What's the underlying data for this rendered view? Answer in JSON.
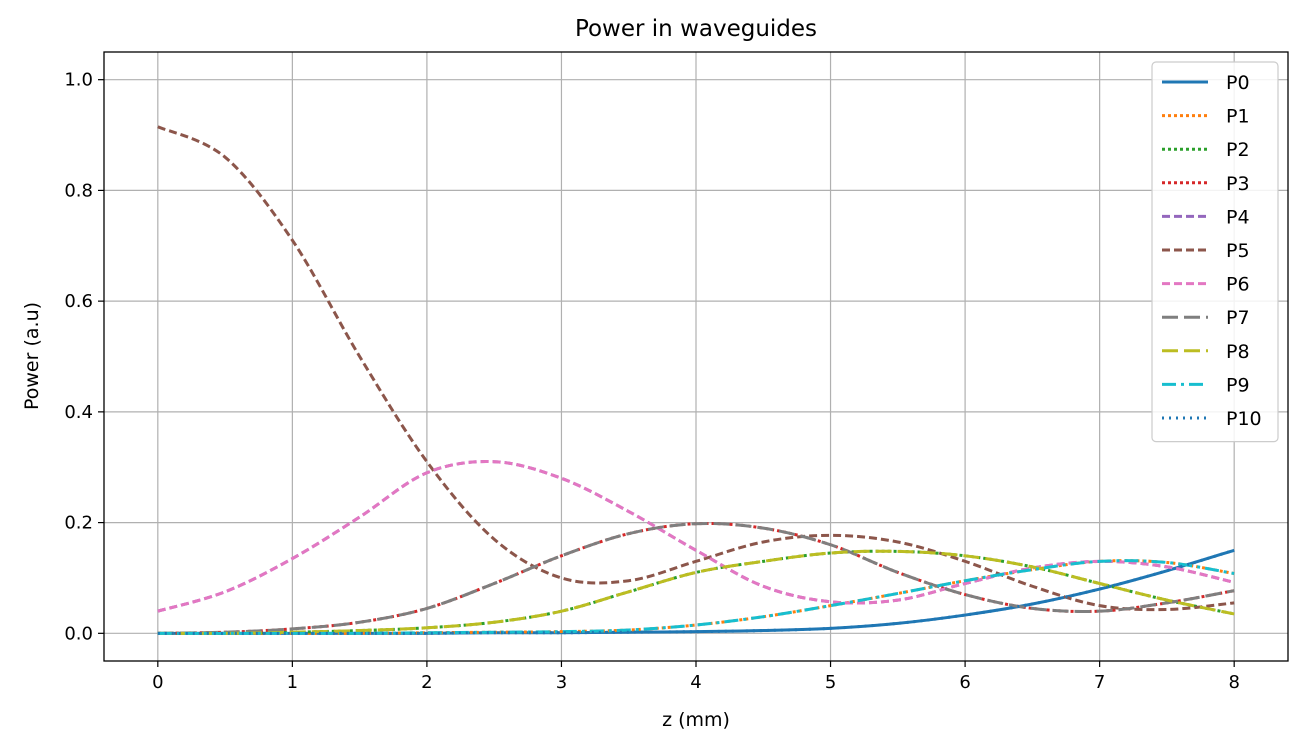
{
  "chart_data": {
    "type": "line",
    "title": "Power in waveguides",
    "xlabel": "z (mm)",
    "ylabel": "Power (a.u)",
    "xlim": [
      -0.4,
      8.4
    ],
    "ylim": [
      -0.05,
      1.05
    ],
    "xticks": [
      0,
      1,
      2,
      3,
      4,
      5,
      6,
      7,
      8
    ],
    "xtick_labels": [
      "0",
      "1",
      "2",
      "3",
      "4",
      "5",
      "6",
      "7",
      "8"
    ],
    "yticks": [
      0.0,
      0.2,
      0.4,
      0.6,
      0.8,
      1.0
    ],
    "ytick_labels": [
      "0.0",
      "0.2",
      "0.4",
      "0.6",
      "0.8",
      "1.0"
    ],
    "grid": true,
    "legend_position": "top-right",
    "x": [
      0,
      0.5,
      1,
      1.5,
      2,
      2.5,
      3,
      3.5,
      4,
      4.5,
      5,
      5.5,
      6,
      6.5,
      7,
      7.5,
      8
    ],
    "series": [
      {
        "name": "P0",
        "color": "#1f77b4",
        "dash": "solid",
        "values": [
          0,
          0,
          0,
          0,
          0,
          0.001,
          0.001,
          0.002,
          0.003,
          0.005,
          0.009,
          0.018,
          0.033,
          0.053,
          0.08,
          0.113,
          0.15
        ]
      },
      {
        "name": "P1",
        "color": "#ff7f0e",
        "dash": "dotted",
        "values": [
          0,
          0,
          0,
          0,
          0.001,
          0.002,
          0.003,
          0.006,
          0.015,
          0.03,
          0.05,
          0.072,
          0.095,
          0.115,
          0.13,
          0.128,
          0.108
        ]
      },
      {
        "name": "P2",
        "color": "#2ca02c",
        "dash": "dotted",
        "values": [
          0,
          0,
          0.002,
          0.005,
          0.01,
          0.02,
          0.04,
          0.075,
          0.11,
          0.13,
          0.145,
          0.148,
          0.14,
          0.12,
          0.09,
          0.06,
          0.035
        ]
      },
      {
        "name": "P3",
        "color": "#d62728",
        "dash": "dotted",
        "values": [
          0,
          0.002,
          0.008,
          0.02,
          0.045,
          0.09,
          0.14,
          0.18,
          0.198,
          0.19,
          0.16,
          0.11,
          0.07,
          0.045,
          0.04,
          0.055,
          0.077
        ]
      },
      {
        "name": "P4",
        "color": "#9467bd",
        "dash": "dashed",
        "values": [
          0.04,
          0.075,
          0.135,
          0.21,
          0.29,
          0.31,
          0.28,
          0.22,
          0.15,
          0.085,
          0.057,
          0.06,
          0.09,
          0.118,
          0.13,
          0.12,
          0.092
        ]
      },
      {
        "name": "P5",
        "color": "#8c564b",
        "dash": "dashed",
        "values": [
          0.915,
          0.86,
          0.71,
          0.5,
          0.31,
          0.17,
          0.1,
          0.095,
          0.13,
          0.165,
          0.177,
          0.165,
          0.13,
          0.085,
          0.05,
          0.043,
          0.055
        ]
      },
      {
        "name": "P6",
        "color": "#e377c2",
        "dash": "dashed",
        "values": [
          0.04,
          0.075,
          0.135,
          0.21,
          0.29,
          0.31,
          0.28,
          0.22,
          0.15,
          0.085,
          0.057,
          0.06,
          0.09,
          0.118,
          0.13,
          0.12,
          0.092
        ]
      },
      {
        "name": "P7",
        "color": "#7f7f7f",
        "dash": "longdash",
        "values": [
          0,
          0.002,
          0.008,
          0.02,
          0.045,
          0.09,
          0.14,
          0.18,
          0.198,
          0.19,
          0.16,
          0.11,
          0.07,
          0.045,
          0.04,
          0.055,
          0.077
        ]
      },
      {
        "name": "P8",
        "color": "#bcbd22",
        "dash": "longdash",
        "values": [
          0,
          0,
          0.002,
          0.005,
          0.01,
          0.02,
          0.04,
          0.075,
          0.11,
          0.13,
          0.145,
          0.148,
          0.14,
          0.12,
          0.09,
          0.06,
          0.035
        ]
      },
      {
        "name": "P9",
        "color": "#17becf",
        "dash": "dashdot",
        "values": [
          0,
          0,
          0,
          0,
          0.001,
          0.002,
          0.003,
          0.006,
          0.015,
          0.03,
          0.05,
          0.072,
          0.095,
          0.115,
          0.13,
          0.128,
          0.108
        ]
      },
      {
        "name": "P10",
        "color": "#1f77b4",
        "dash": "densedot",
        "values": [
          0,
          0,
          0,
          0,
          0,
          0.001,
          0.001,
          0.002,
          0.003,
          0.005,
          0.009,
          0.018,
          0.033,
          0.053,
          0.08,
          0.113,
          0.15
        ]
      }
    ]
  }
}
